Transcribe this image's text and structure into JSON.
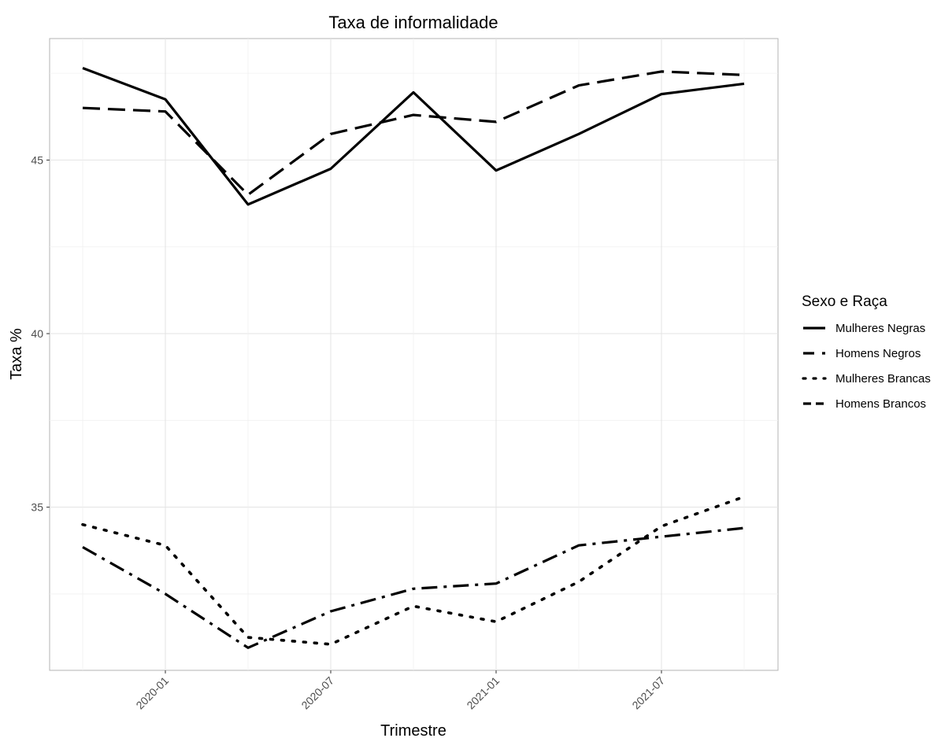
{
  "chart_data": {
    "type": "line",
    "title": "Taxa de informalidade",
    "xlabel": "Trimestre",
    "ylabel": "Taxa %",
    "x": [
      "2019-10",
      "2020-01",
      "2020-04",
      "2020-07",
      "2020-10",
      "2021-01",
      "2021-04",
      "2021-07",
      "2021-10"
    ],
    "x_tick_labels": [
      "2020-01",
      "2020-07",
      "2021-01",
      "2021-07"
    ],
    "y_ticks": [
      35,
      40,
      45
    ],
    "ylim": [
      30.3,
      48.5
    ],
    "grid": true,
    "legend": {
      "title": "Sexo e Raça",
      "position": "right"
    },
    "series": [
      {
        "name": "Mulheres Negras",
        "dash": "solid",
        "values": [
          47.65,
          46.75,
          43.72,
          44.75,
          46.95,
          44.7,
          45.75,
          46.9,
          47.2
        ]
      },
      {
        "name": "Homens Negros",
        "dash": "longdash",
        "values": [
          46.5,
          46.4,
          44.0,
          45.75,
          46.3,
          46.1,
          47.15,
          47.55,
          47.45
        ]
      },
      {
        "name": "Mulheres Brancas",
        "dash": "dotted",
        "values": [
          34.5,
          33.9,
          31.25,
          31.05,
          32.15,
          31.7,
          32.85,
          34.45,
          35.3
        ]
      },
      {
        "name": "Homens Brancos",
        "dash": "dotdash",
        "values": [
          33.85,
          32.5,
          30.95,
          32.0,
          32.65,
          32.8,
          33.9,
          34.15,
          34.4
        ]
      }
    ]
  }
}
